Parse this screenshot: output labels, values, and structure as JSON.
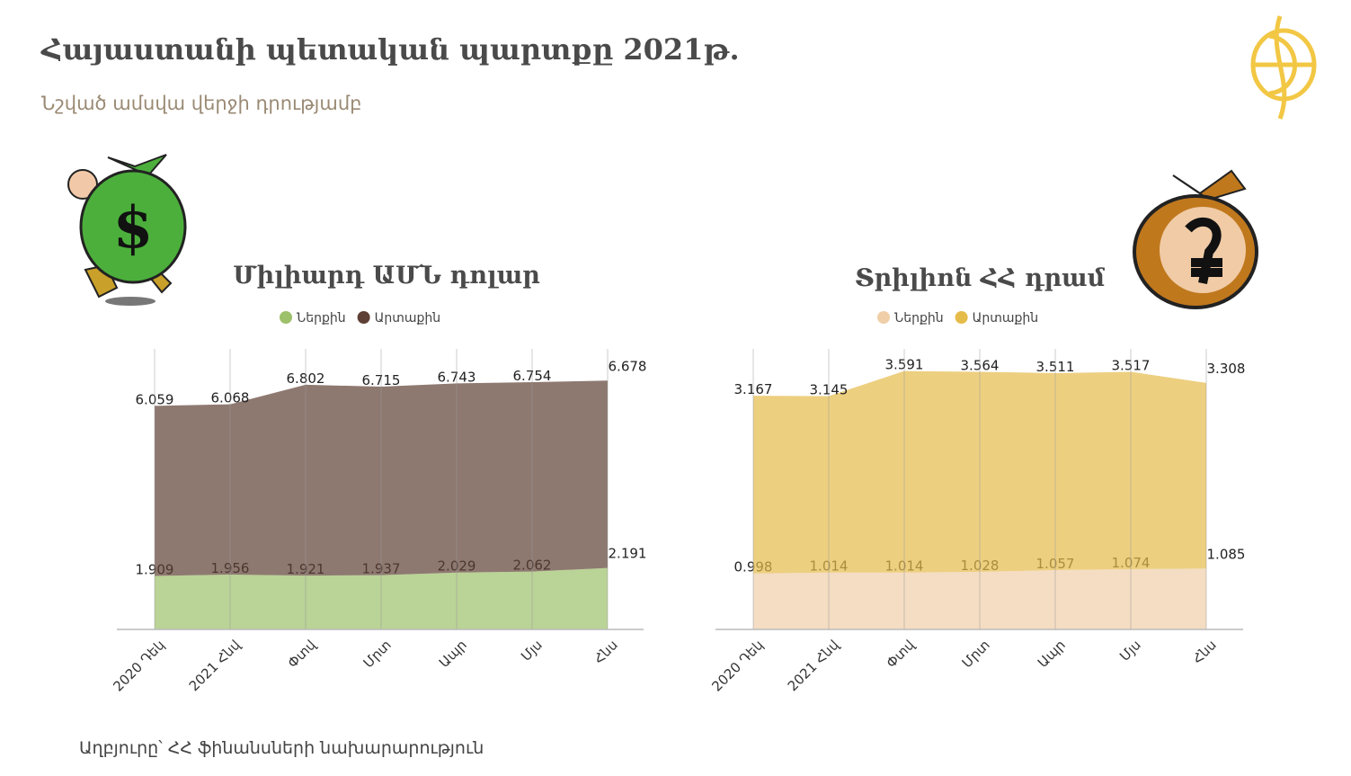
{
  "title": "Հայաստանի պետական պարտքը 2021թ.",
  "subtitle": "Նշված ամսվա վերջի դրությամբ",
  "source": "Աղբյուրը՝ ՀՀ ֆինանսների նախարարություն",
  "chart_data": [
    {
      "type": "area",
      "stacked": true,
      "title": "Միլիարդ ԱՄՆ դոլար",
      "categories": [
        "2020 Դեկ",
        "2021 Հնվ",
        "Փտվ",
        "Մրտ",
        "Ապր",
        "Մյս",
        "Հնս"
      ],
      "series": [
        {
          "name": "Ներքին",
          "color": "#9dc06a",
          "values": [
            1.909,
            1.956,
            1.921,
            1.937,
            2.029,
            2.062,
            2.191
          ]
        },
        {
          "name": "Արտաքին",
          "color": "#5e4034",
          "values": [
            6.059,
            6.068,
            6.802,
            6.715,
            6.743,
            6.754,
            6.678
          ]
        }
      ],
      "ylim": [
        0,
        10
      ],
      "legend": "top"
    },
    {
      "type": "area",
      "stacked": true,
      "title": "Տրիլիոն ՀՀ դրամ",
      "categories": [
        "2020 Դեկ",
        "2021 Հնվ",
        "Փտվ",
        "Մրտ",
        "Ապր",
        "Մյս",
        "Հնս"
      ],
      "series": [
        {
          "name": "Ներքին",
          "color": "#f0cfa8",
          "values": [
            0.998,
            1.014,
            1.014,
            1.028,
            1.057,
            1.074,
            1.085
          ]
        },
        {
          "name": "Արտաքին",
          "color": "#e5bb4a",
          "values": [
            3.167,
            3.145,
            3.591,
            3.564,
            3.511,
            3.517,
            3.308
          ]
        }
      ],
      "ylim": [
        0,
        5
      ],
      "legend": "top"
    }
  ]
}
